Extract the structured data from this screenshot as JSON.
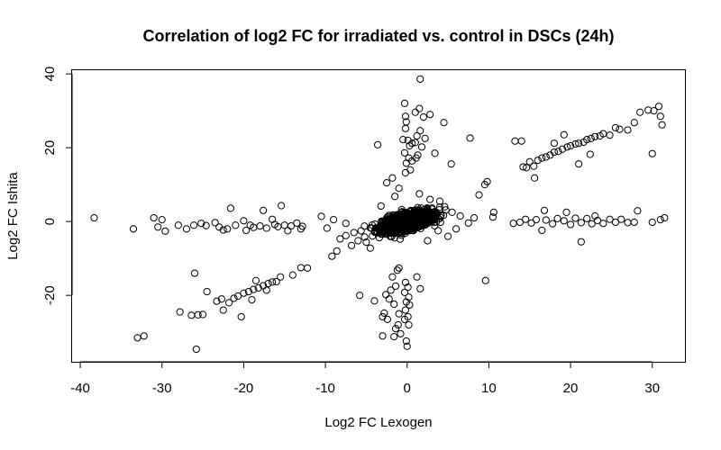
{
  "chart_data": {
    "type": "scatter",
    "title": "Correlation of log2 FC for irradiated vs. control in DSCs (24h)",
    "xlabel": "Log2 FC Lexogen",
    "ylabel": "Log2 FC Ishita",
    "xlim": [
      -41,
      34
    ],
    "ylim": [
      -38,
      41
    ],
    "xticks": [
      -40,
      -30,
      -20,
      -10,
      0,
      10,
      20,
      30
    ],
    "yticks": [
      -20,
      0,
      20,
      40
    ],
    "grid": false,
    "marker": "open-circle",
    "marker_color": "#000000",
    "series": [
      {
        "name": "",
        "points": [
          [
            -38.3,
            1.0
          ],
          [
            -33.5,
            -2.0
          ],
          [
            -31.0,
            1.0
          ],
          [
            -30.0,
            0.5
          ],
          [
            -29.6,
            -2.6
          ],
          [
            -28.0,
            -1.0
          ],
          [
            -26.1,
            -1.0
          ],
          [
            -25.2,
            -0.5
          ],
          [
            -23.5,
            -0.3
          ],
          [
            -22.5,
            -2.3
          ],
          [
            -21.0,
            -1.0
          ],
          [
            -20.0,
            0.2
          ],
          [
            -19.2,
            -1.0
          ],
          [
            -18.0,
            -1.2
          ],
          [
            -17.2,
            -1.8
          ],
          [
            -16.5,
            0.6
          ],
          [
            -15.8,
            -1.4
          ],
          [
            -15.0,
            -1.0
          ],
          [
            -14.2,
            -1.2
          ],
          [
            -13.5,
            -0.4
          ],
          [
            -12.8,
            -1.3
          ],
          [
            -22.0,
            -2.0
          ],
          [
            -18.8,
            -1.6
          ],
          [
            -16.2,
            -0.8
          ],
          [
            -21.6,
            3.6
          ],
          [
            -17.6,
            3.0
          ],
          [
            -15.4,
            4.3
          ],
          [
            -19.7,
            -2.4
          ],
          [
            -14.6,
            -2.5
          ],
          [
            -23.0,
            -1.5
          ],
          [
            -27.0,
            -2.0
          ],
          [
            -30.5,
            -1.5
          ],
          [
            -24.6,
            -1.1
          ],
          [
            -13.0,
            -2.0
          ],
          [
            -33.0,
            -31.5
          ],
          [
            -32.2,
            -31.0
          ],
          [
            -27.8,
            -24.5
          ],
          [
            -26.4,
            -25.4
          ],
          [
            -25.6,
            -25.3
          ],
          [
            -25.0,
            -25.2
          ],
          [
            -24.5,
            -19.0
          ],
          [
            -23.3,
            -21.6
          ],
          [
            -22.7,
            -21.0
          ],
          [
            -21.8,
            -22.0
          ],
          [
            -21.2,
            -20.8
          ],
          [
            -20.7,
            -20.2
          ],
          [
            -20.0,
            -19.4
          ],
          [
            -19.4,
            -19.0
          ],
          [
            -18.8,
            -18.4
          ],
          [
            -18.2,
            -18.0
          ],
          [
            -17.6,
            -17.4
          ],
          [
            -17.0,
            -16.8
          ],
          [
            -16.5,
            -16.4
          ],
          [
            -16.0,
            -16.3
          ],
          [
            -15.5,
            -15.0
          ],
          [
            -14.0,
            -14.5
          ],
          [
            -13.0,
            -12.5
          ],
          [
            -12.2,
            -12.6
          ],
          [
            -20.3,
            -25.8
          ],
          [
            -22.5,
            -24.0
          ],
          [
            -26.0,
            -14.0
          ],
          [
            -25.8,
            -34.6
          ],
          [
            -18.5,
            -16.0
          ],
          [
            -17.2,
            -18.6
          ],
          [
            -19.0,
            -21.2
          ],
          [
            -10.5,
            1.4
          ],
          [
            -9.8,
            -1.8
          ],
          [
            -9.0,
            0.5
          ],
          [
            -8.2,
            -4.7
          ],
          [
            -7.5,
            -3.8
          ],
          [
            -6.8,
            -6.5
          ],
          [
            -6.0,
            -5.2
          ],
          [
            -5.2,
            -4.2
          ],
          [
            -5.8,
            -20.0
          ],
          [
            -9.2,
            -9.4
          ],
          [
            -8.6,
            -8.0
          ],
          [
            -4.0,
            -21.5
          ],
          [
            -3.6,
            20.8
          ],
          [
            -2.5,
            10.5
          ],
          [
            -1.8,
            11.8
          ],
          [
            -1.0,
            -12.6
          ],
          [
            -0.3,
            32.0
          ],
          [
            -0.2,
            28.5
          ],
          [
            -0.1,
            27.0
          ],
          [
            -0.2,
            25.2
          ],
          [
            0.1,
            22.0
          ],
          [
            0.3,
            20.5
          ],
          [
            -0.3,
            18.6
          ],
          [
            0.2,
            17.2
          ],
          [
            -0.1,
            15.8
          ],
          [
            0.4,
            14.0
          ],
          [
            -0.2,
            13.2
          ],
          [
            1.6,
            38.6
          ],
          [
            1.0,
            29.6
          ],
          [
            1.5,
            30.6
          ],
          [
            2.0,
            28.3
          ],
          [
            2.8,
            29.0
          ],
          [
            1.6,
            24.6
          ],
          [
            1.2,
            23.2
          ],
          [
            2.2,
            22.5
          ],
          [
            1.0,
            21.4
          ],
          [
            1.8,
            20.2
          ],
          [
            1.3,
            18.0
          ],
          [
            0.6,
            16.4
          ],
          [
            1.1,
            17.2
          ],
          [
            4.5,
            26.8
          ],
          [
            3.4,
            18.5
          ],
          [
            5.4,
            15.6
          ],
          [
            7.7,
            22.6
          ],
          [
            -0.5,
            22.2
          ],
          [
            0.6,
            21.2
          ],
          [
            -0.2,
            -16.5
          ],
          [
            0.1,
            -17.8
          ],
          [
            -0.3,
            -19.2
          ],
          [
            0.2,
            -20.5
          ],
          [
            -0.1,
            -21.8
          ],
          [
            0.3,
            -22.6
          ],
          [
            -0.2,
            -24.0
          ],
          [
            0.1,
            -25.8
          ],
          [
            -0.3,
            -26.5
          ],
          [
            0.2,
            -28.0
          ],
          [
            -0.1,
            -32.4
          ],
          [
            0.0,
            -33.8
          ],
          [
            -1.2,
            -13.2
          ],
          [
            -1.8,
            -15.0
          ],
          [
            -1.4,
            -17.5
          ],
          [
            -2.0,
            -18.6
          ],
          [
            -2.6,
            -19.8
          ],
          [
            -2.2,
            -21.0
          ],
          [
            -1.6,
            -22.4
          ],
          [
            -2.8,
            -24.8
          ],
          [
            -2.4,
            -26.5
          ],
          [
            -1.1,
            -28.0
          ],
          [
            -0.8,
            -30.4
          ],
          [
            -1.6,
            -31.2
          ],
          [
            -3.0,
            -25.8
          ],
          [
            -1.0,
            -25.0
          ],
          [
            1.2,
            -15.0
          ],
          [
            1.6,
            -18.2
          ],
          [
            -3.0,
            -31.0
          ],
          [
            -1.4,
            -29.0
          ],
          [
            13.2,
            21.8
          ],
          [
            14.0,
            21.8
          ],
          [
            14.6,
            14.6
          ],
          [
            15.0,
            16.2
          ],
          [
            15.5,
            15.0
          ],
          [
            16.0,
            16.6
          ],
          [
            16.5,
            17.2
          ],
          [
            17.0,
            17.5
          ],
          [
            17.5,
            18.0
          ],
          [
            18.0,
            18.8
          ],
          [
            18.5,
            19.0
          ],
          [
            19.0,
            19.6
          ],
          [
            19.6,
            20.2
          ],
          [
            20.0,
            20.5
          ],
          [
            20.6,
            21.0
          ],
          [
            21.0,
            21.2
          ],
          [
            21.6,
            21.5
          ],
          [
            22.0,
            22.2
          ],
          [
            22.5,
            22.5
          ],
          [
            23.0,
            23.0
          ],
          [
            23.6,
            23.2
          ],
          [
            24.0,
            23.8
          ],
          [
            24.8,
            23.4
          ],
          [
            25.5,
            25.4
          ],
          [
            26.0,
            25.0
          ],
          [
            27.0,
            24.8
          ],
          [
            27.8,
            26.8
          ],
          [
            28.5,
            29.6
          ],
          [
            29.5,
            30.2
          ],
          [
            30.2,
            30.0
          ],
          [
            30.8,
            31.2
          ],
          [
            31.0,
            28.5
          ],
          [
            31.2,
            26.2
          ],
          [
            30.0,
            18.4
          ],
          [
            18.0,
            21.2
          ],
          [
            19.2,
            23.5
          ],
          [
            21.0,
            15.6
          ],
          [
            15.6,
            11.8
          ],
          [
            22.4,
            18.2
          ],
          [
            14.2,
            14.8
          ],
          [
            13.0,
            -0.5
          ],
          [
            13.8,
            -0.2
          ],
          [
            14.5,
            0.6
          ],
          [
            15.2,
            -0.4
          ],
          [
            15.8,
            0.5
          ],
          [
            16.5,
            -2.4
          ],
          [
            17.0,
            0.4
          ],
          [
            17.8,
            -0.6
          ],
          [
            18.4,
            0.8
          ],
          [
            19.2,
            0.2
          ],
          [
            20.0,
            -0.8
          ],
          [
            20.6,
            0.9
          ],
          [
            21.3,
            -0.3
          ],
          [
            22.0,
            0.8
          ],
          [
            22.6,
            -0.6
          ],
          [
            23.3,
            0.3
          ],
          [
            24.0,
            -0.5
          ],
          [
            24.8,
            0.6
          ],
          [
            25.5,
            -0.2
          ],
          [
            26.2,
            0.6
          ],
          [
            27.0,
            -0.3
          ],
          [
            27.8,
            -0.2
          ],
          [
            28.2,
            2.9
          ],
          [
            30.0,
            -0.2
          ],
          [
            31.0,
            0.5
          ],
          [
            31.5,
            1.0
          ],
          [
            21.3,
            -5.5
          ],
          [
            19.5,
            2.5
          ],
          [
            23.0,
            1.5
          ],
          [
            16.8,
            3.0
          ],
          [
            7.5,
            -0.4
          ],
          [
            8.2,
            1.0
          ],
          [
            8.8,
            7.2
          ],
          [
            9.5,
            10.0
          ],
          [
            9.8,
            10.8
          ],
          [
            10.5,
            1.2
          ],
          [
            10.6,
            2.5
          ],
          [
            9.6,
            -16.0
          ],
          [
            6.0,
            -2.0
          ],
          [
            5.0,
            -4.0
          ],
          [
            4.6,
            4.0
          ],
          [
            3.8,
            -2.5
          ],
          [
            2.5,
            -5.2
          ],
          [
            -4.5,
            -7.2
          ],
          [
            -5.0,
            -5.6
          ],
          [
            -1.5,
            6.8
          ],
          [
            -1.0,
            9.0
          ],
          [
            1.5,
            7.5
          ],
          [
            2.8,
            6.0
          ],
          [
            4.0,
            5.5
          ],
          [
            5.5,
            2.5
          ],
          [
            6.5,
            1.5
          ],
          [
            -3.2,
            4.2
          ],
          [
            -6.5,
            -3.0
          ],
          [
            -7.5,
            -0.5
          ]
        ],
        "dense_core": {
          "n": 1400,
          "x_range": [
            -7,
            7
          ],
          "y_range": [
            -6,
            7
          ],
          "spread_x": 1.5,
          "spread_y": 1.3,
          "corr": 0.55
        }
      }
    ]
  }
}
